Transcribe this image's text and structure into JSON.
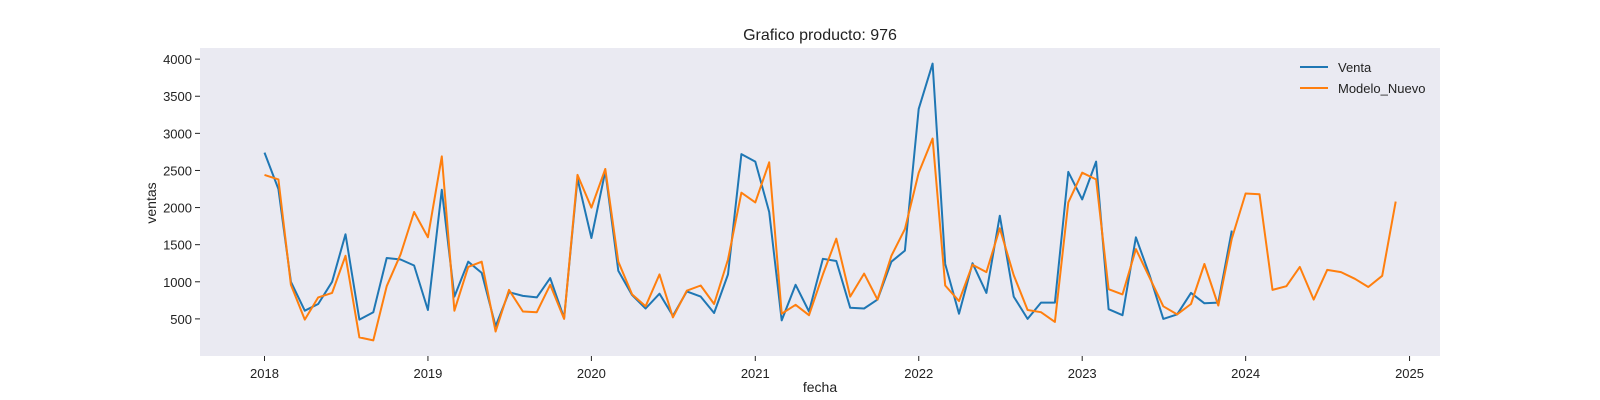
{
  "chart_data": {
    "type": "line",
    "title": "Grafico producto: 976",
    "xlabel": "fecha",
    "ylabel": "ventas",
    "xlim": [
      "2017-08-10",
      "2025-03-10"
    ],
    "ylim": [
      0,
      4150
    ],
    "x_ticks": [
      {
        "label": "2018",
        "date": "2018-01-01"
      },
      {
        "label": "2019",
        "date": "2019-01-01"
      },
      {
        "label": "2020",
        "date": "2020-01-01"
      },
      {
        "label": "2021",
        "date": "2021-01-01"
      },
      {
        "label": "2022",
        "date": "2022-01-01"
      },
      {
        "label": "2023",
        "date": "2023-01-01"
      },
      {
        "label": "2024",
        "date": "2024-01-01"
      },
      {
        "label": "2025",
        "date": "2025-01-01"
      }
    ],
    "y_ticks": [
      500,
      1000,
      1500,
      2000,
      2500,
      3000,
      3500,
      4000
    ],
    "grid": false,
    "background": "#eaeaf2",
    "legend_position": "top-right",
    "series": [
      {
        "name": "Venta",
        "color": "#1f77b4",
        "x": [
          "2018-01",
          "2018-02",
          "2018-03",
          "2018-04",
          "2018-05",
          "2018-06",
          "2018-07",
          "2018-08",
          "2018-09",
          "2018-10",
          "2018-11",
          "2018-12",
          "2019-01",
          "2019-02",
          "2019-03",
          "2019-04",
          "2019-05",
          "2019-06",
          "2019-07",
          "2019-08",
          "2019-09",
          "2019-10",
          "2019-11",
          "2019-12",
          "2020-01",
          "2020-02",
          "2020-03",
          "2020-04",
          "2020-05",
          "2020-06",
          "2020-07",
          "2020-08",
          "2020-09",
          "2020-10",
          "2020-11",
          "2020-12",
          "2021-01",
          "2021-02",
          "2021-03",
          "2021-04",
          "2021-05",
          "2021-06",
          "2021-07",
          "2021-08",
          "2021-09",
          "2021-10",
          "2021-11",
          "2021-12",
          "2022-01",
          "2022-02",
          "2022-03",
          "2022-04",
          "2022-05",
          "2022-06",
          "2022-07",
          "2022-08",
          "2022-09",
          "2022-10",
          "2022-11",
          "2022-12",
          "2023-01",
          "2023-02",
          "2023-03",
          "2023-04",
          "2023-05",
          "2023-06",
          "2023-07",
          "2023-08",
          "2023-09",
          "2023-10",
          "2023-11",
          "2023-12"
        ],
        "values": [
          2740,
          2250,
          1000,
          610,
          700,
          1000,
          1640,
          490,
          590,
          1320,
          1300,
          1220,
          620,
          2240,
          800,
          1270,
          1120,
          400,
          860,
          810,
          790,
          1050,
          510,
          2390,
          1590,
          2490,
          1150,
          820,
          640,
          840,
          540,
          870,
          800,
          580,
          1100,
          2720,
          2620,
          1940,
          480,
          960,
          600,
          1310,
          1280,
          650,
          640,
          760,
          1270,
          1420,
          3330,
          3940,
          1240,
          570,
          1250,
          850,
          1890,
          800,
          500,
          720,
          720,
          2480,
          2110,
          2620,
          630,
          550,
          1600,
          1080,
          500,
          560,
          850,
          710,
          720,
          1690
        ]
      },
      {
        "name": "Modelo_Nuevo",
        "color": "#ff7f0e",
        "x": [
          "2018-01",
          "2018-02",
          "2018-03",
          "2018-04",
          "2018-05",
          "2018-06",
          "2018-07",
          "2018-08",
          "2018-09",
          "2018-10",
          "2018-11",
          "2018-12",
          "2019-01",
          "2019-02",
          "2019-03",
          "2019-04",
          "2019-05",
          "2019-06",
          "2019-07",
          "2019-08",
          "2019-09",
          "2019-10",
          "2019-11",
          "2019-12",
          "2020-01",
          "2020-02",
          "2020-03",
          "2020-04",
          "2020-05",
          "2020-06",
          "2020-07",
          "2020-08",
          "2020-09",
          "2020-10",
          "2020-11",
          "2020-12",
          "2021-01",
          "2021-02",
          "2021-03",
          "2021-04",
          "2021-05",
          "2021-06",
          "2021-07",
          "2021-08",
          "2021-09",
          "2021-10",
          "2021-11",
          "2021-12",
          "2022-01",
          "2022-02",
          "2022-03",
          "2022-04",
          "2022-05",
          "2022-06",
          "2022-07",
          "2022-08",
          "2022-09",
          "2022-10",
          "2022-11",
          "2022-12",
          "2023-01",
          "2023-02",
          "2023-03",
          "2023-04",
          "2023-05",
          "2023-06",
          "2023-07",
          "2023-08",
          "2023-09",
          "2023-10",
          "2023-11",
          "2023-12",
          "2024-01",
          "2024-02",
          "2024-03",
          "2024-04",
          "2024-05",
          "2024-06",
          "2024-07",
          "2024-08",
          "2024-09",
          "2024-10",
          "2024-11",
          "2024-12"
        ],
        "values": [
          2440,
          2380,
          960,
          490,
          790,
          850,
          1350,
          250,
          210,
          940,
          1370,
          1940,
          1600,
          2690,
          610,
          1200,
          1270,
          330,
          890,
          600,
          590,
          960,
          500,
          2440,
          2000,
          2520,
          1270,
          830,
          670,
          1100,
          520,
          880,
          950,
          700,
          1300,
          2200,
          2070,
          2610,
          570,
          690,
          550,
          1100,
          1580,
          800,
          1110,
          760,
          1350,
          1710,
          2470,
          2930,
          950,
          740,
          1230,
          1130,
          1720,
          1090,
          620,
          590,
          460,
          2070,
          2470,
          2380,
          900,
          830,
          1440,
          1050,
          670,
          560,
          700,
          1240,
          680,
          1580,
          2190,
          2180,
          890,
          940,
          1200,
          760,
          1160,
          1130,
          1040,
          930,
          1080,
          2080
        ]
      }
    ]
  }
}
